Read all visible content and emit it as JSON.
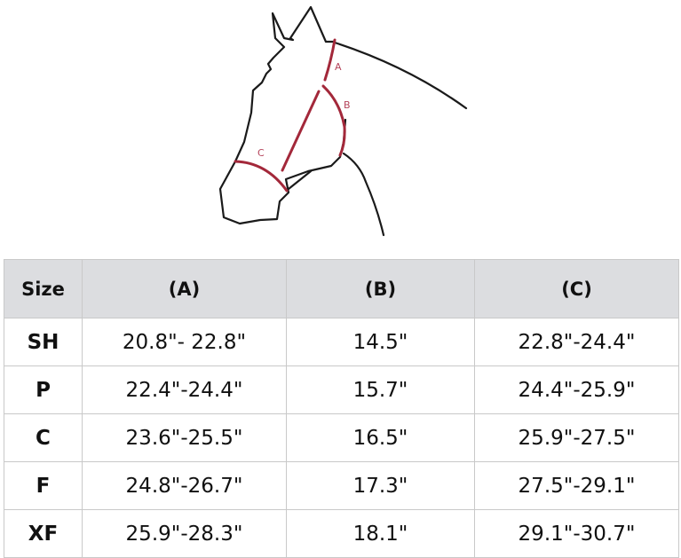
{
  "diagram": {
    "labels": [
      "A",
      "B",
      "C"
    ],
    "colors": {
      "outline": "#1a1a1a",
      "measure": "#a3283a",
      "label": "#b5435a"
    }
  },
  "table": {
    "headers": [
      "Size",
      "(A)",
      "(B)",
      "(C)"
    ],
    "rows": [
      [
        "SH",
        "20.8\"- 22.8\"",
        "14.5\"",
        "22.8\"-24.4\""
      ],
      [
        "P",
        "22.4\"-24.4\"",
        "15.7\"",
        "24.4\"-25.9\""
      ],
      [
        "C",
        "23.6\"-25.5\"",
        "16.5\"",
        "25.9\"-27.5\""
      ],
      [
        "F",
        "24.8\"-26.7\"",
        "17.3\"",
        "27.5\"-29.1\""
      ],
      [
        "XF",
        "25.9\"-28.3\"",
        "18.1\"",
        "29.1\"-30.7\""
      ]
    ],
    "header_bg": "#dcdde0"
  }
}
